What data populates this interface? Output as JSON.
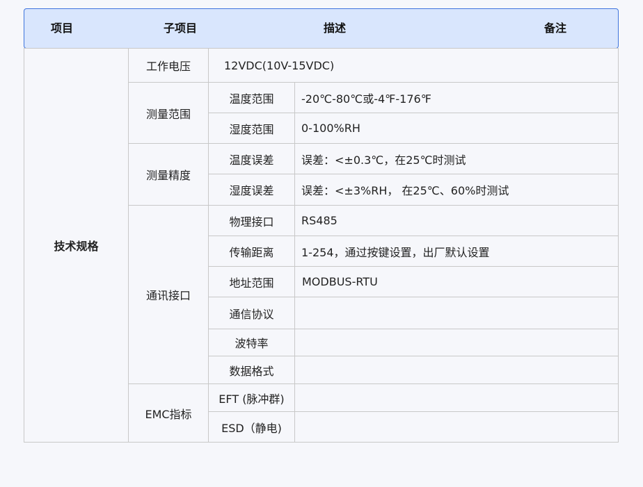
{
  "header": {
    "col1": "项目",
    "col2": "子项目",
    "col3": "描述",
    "col4": "备注"
  },
  "category": "技术规格",
  "voltage": {
    "label": "工作电压",
    "value": "12VDC(10V-15VDC)"
  },
  "range": {
    "label": "测量范围",
    "items": [
      {
        "label": "温度范围",
        "value": "-20℃-80℃或-4℉-176℉"
      },
      {
        "label": "湿度范围",
        "value": "0-100%RH"
      }
    ]
  },
  "accuracy": {
    "label": "测量精度",
    "items": [
      {
        "label": "温度误差",
        "value": "误差：<±0.3℃，在25℃时测试"
      },
      {
        "label": "湿度误差",
        "value": "误差：<±3%RH， 在25℃、60%时测试"
      }
    ]
  },
  "comm": {
    "label": "通讯接口",
    "items": [
      {
        "label": "物理接口",
        "value": "RS485"
      },
      {
        "label": "传输距离",
        "value": "1-254，通过按键设置，出厂默认设置"
      },
      {
        "label": "地址范围",
        "value": "MODBUS-RTU"
      },
      {
        "label": "通信协议",
        "value": ""
      },
      {
        "label": "波特率",
        "value": ""
      },
      {
        "label": "数据格式",
        "value": ""
      }
    ]
  },
  "emc": {
    "label": "EMC指标",
    "items": [
      {
        "label": "EFT (脉冲群)",
        "value": ""
      },
      {
        "label": "ESD（静电)",
        "value": ""
      }
    ]
  }
}
